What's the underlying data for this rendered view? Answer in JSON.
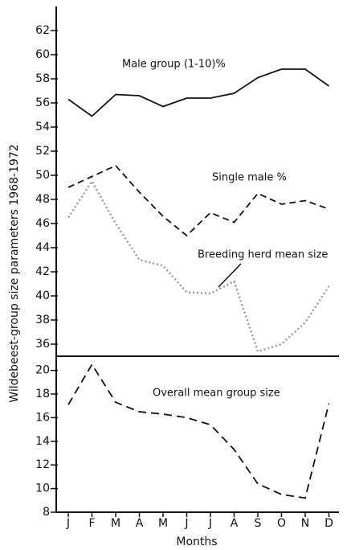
{
  "chart_data": [
    {
      "type": "line",
      "ylabel": "Wildebeest-group size parameters 1968-1972",
      "ylim": [
        35,
        64
      ],
      "yticks": [
        36,
        38,
        40,
        42,
        44,
        46,
        48,
        50,
        52,
        54,
        56,
        58,
        60,
        62
      ],
      "series": [
        {
          "name": "Male group (1-10)%",
          "color": "#111111",
          "style": "solid",
          "values": [
            56.3,
            54.9,
            56.7,
            56.6,
            55.7,
            56.4,
            56.4,
            56.8,
            58.1,
            58.8,
            58.8,
            57.4
          ]
        },
        {
          "name": "Single male %",
          "color": "#111111",
          "style": "dashed",
          "values": [
            49,
            49.9,
            50.8,
            48.6,
            46.6,
            45,
            46.9,
            46.1,
            48.5,
            47.6,
            47.9,
            47.2
          ]
        },
        {
          "name": "Breeding herd mean size",
          "color": "#9a9a9a",
          "style": "dotted",
          "values": [
            46.5,
            49.5,
            46,
            43,
            42.5,
            40.3,
            40.2,
            41.2,
            35.4,
            36,
            37.8,
            40.8
          ]
        }
      ]
    },
    {
      "type": "line",
      "xlabel": "Months",
      "categories": [
        "J",
        "F",
        "M",
        "A",
        "M",
        "J",
        "J",
        "A",
        "S",
        "O",
        "N",
        "D"
      ],
      "ylim": [
        8,
        21.2
      ],
      "yticks": [
        8,
        10,
        12,
        14,
        16,
        18,
        20
      ],
      "series": [
        {
          "name": "Overall mean group size",
          "color": "#111111",
          "style": "longdash",
          "values": [
            17.1,
            20.5,
            17.3,
            16.5,
            16.3,
            16,
            15.4,
            13.3,
            10.4,
            9.5,
            9.2,
            17.2
          ]
        }
      ]
    }
  ]
}
